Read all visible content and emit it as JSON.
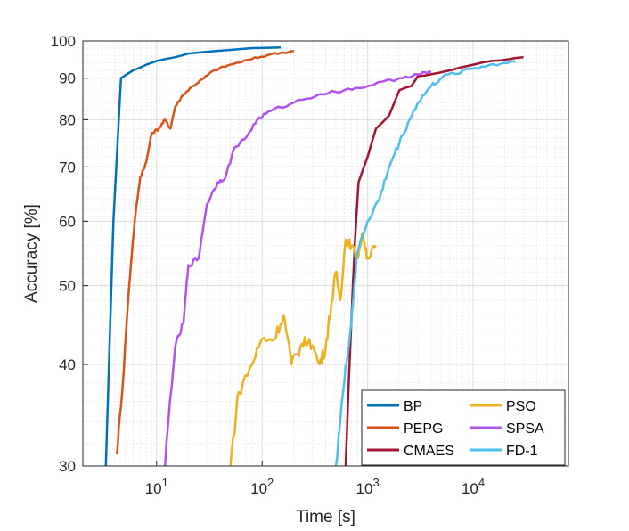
{
  "chart_data": {
    "type": "line",
    "xlabel": "Time [s]",
    "ylabel": "Accuracy [%]",
    "xscale": "log",
    "yscale": "log",
    "xlim": [
      2,
      80000
    ],
    "ylim": [
      30,
      100
    ],
    "grid": true,
    "legend_position": "bottom-right",
    "x_ticks": [
      {
        "value": 10,
        "base": "10",
        "exp": "1"
      },
      {
        "value": 100,
        "base": "10",
        "exp": "2"
      },
      {
        "value": 1000,
        "base": "10",
        "exp": "3"
      },
      {
        "value": 10000,
        "base": "10",
        "exp": "4"
      }
    ],
    "y_ticks": [
      30,
      40,
      50,
      60,
      70,
      80,
      90,
      100
    ],
    "series": [
      {
        "name": "BP",
        "color": "#0072BD",
        "points": [
          [
            3.3,
            30
          ],
          [
            4.6,
            90
          ],
          [
            6,
            92
          ],
          [
            8,
            93.5
          ],
          [
            10,
            94.5
          ],
          [
            15,
            95.5
          ],
          [
            20,
            96.5
          ],
          [
            30,
            97
          ],
          [
            50,
            97.5
          ],
          [
            80,
            98
          ],
          [
            150,
            98.2
          ]
        ]
      },
      {
        "name": "PEPG",
        "color": "#D95319",
        "points": [
          [
            4.2,
            31
          ],
          [
            4.8,
            38
          ],
          [
            5.5,
            50
          ],
          [
            6.2,
            60
          ],
          [
            7,
            68
          ],
          [
            8,
            71
          ],
          [
            9,
            77
          ],
          [
            10.5,
            78
          ],
          [
            12,
            80
          ],
          [
            13.5,
            78
          ],
          [
            15,
            83
          ],
          [
            18,
            86
          ],
          [
            22,
            88
          ],
          [
            28,
            90
          ],
          [
            35,
            92
          ],
          [
            50,
            93.5
          ],
          [
            80,
            95
          ],
          [
            120,
            96.3
          ],
          [
            200,
            97.2
          ]
        ]
      },
      {
        "name": "CMAES",
        "color": "#A2142F",
        "points": [
          [
            620,
            30
          ],
          [
            700,
            45
          ],
          [
            760,
            57
          ],
          [
            820,
            67
          ],
          [
            1000,
            72
          ],
          [
            1200,
            78
          ],
          [
            1600,
            81
          ],
          [
            2000,
            87
          ],
          [
            2600,
            88
          ],
          [
            3000,
            90.5
          ],
          [
            4000,
            91
          ],
          [
            6000,
            92
          ],
          [
            10000,
            93.5
          ],
          [
            15000,
            94.5
          ],
          [
            22000,
            95
          ],
          [
            30000,
            95.5
          ]
        ]
      },
      {
        "name": "PSO",
        "color": "#EDB120",
        "points": [
          [
            50,
            30
          ],
          [
            60,
            37
          ],
          [
            80,
            40
          ],
          [
            100,
            43
          ],
          [
            130,
            43
          ],
          [
            160,
            46
          ],
          [
            190,
            40
          ],
          [
            230,
            42
          ],
          [
            280,
            43
          ],
          [
            350,
            40
          ],
          [
            400,
            42
          ],
          [
            450,
            47
          ],
          [
            500,
            52
          ],
          [
            550,
            48
          ],
          [
            620,
            57
          ],
          [
            700,
            56
          ],
          [
            800,
            54
          ],
          [
            900,
            58
          ],
          [
            1000,
            54
          ],
          [
            1200,
            56
          ]
        ]
      },
      {
        "name": "SPSA",
        "color": "#B44FF0",
        "points": [
          [
            12,
            30
          ],
          [
            15,
            42
          ],
          [
            18,
            45
          ],
          [
            20,
            53
          ],
          [
            25,
            54
          ],
          [
            30,
            63
          ],
          [
            38,
            67
          ],
          [
            45,
            68
          ],
          [
            55,
            74
          ],
          [
            70,
            76
          ],
          [
            90,
            80
          ],
          [
            120,
            82
          ],
          [
            200,
            84
          ],
          [
            350,
            86
          ],
          [
            600,
            87
          ],
          [
            1000,
            88
          ],
          [
            2000,
            90
          ],
          [
            3000,
            91
          ],
          [
            4000,
            91.5
          ]
        ]
      },
      {
        "name": "FD-1",
        "color": "#4DBEEE",
        "points": [
          [
            500,
            30
          ],
          [
            600,
            38
          ],
          [
            700,
            45
          ],
          [
            800,
            55
          ],
          [
            1000,
            60
          ],
          [
            1300,
            64
          ],
          [
            1600,
            70
          ],
          [
            2000,
            75
          ],
          [
            2500,
            80
          ],
          [
            3000,
            84
          ],
          [
            4000,
            88
          ],
          [
            5000,
            90
          ],
          [
            8000,
            92
          ],
          [
            12000,
            93
          ],
          [
            20000,
            94
          ],
          [
            25000,
            94.5
          ]
        ]
      }
    ]
  }
}
